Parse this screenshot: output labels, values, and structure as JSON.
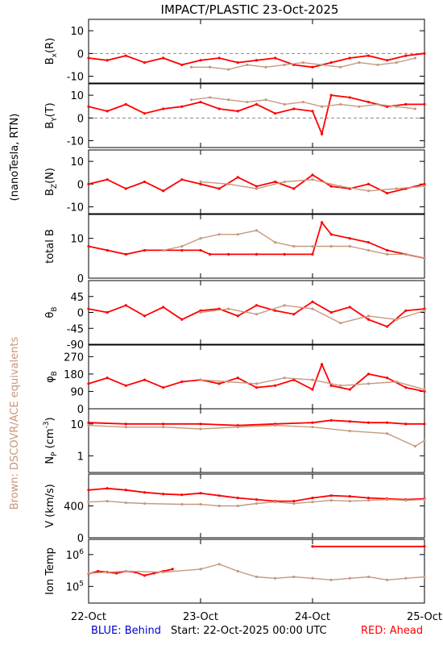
{
  "header": {
    "title": "IMPACT/PLASTIC   23-Oct-2025"
  },
  "side_labels": {
    "units": "(nanoTesla, RTN)",
    "brown_note": "Brown: DSCOVR/ACE equivalents"
  },
  "footer": {
    "blue": "BLUE: Behind",
    "start": "Start: 22-Oct-2025 00:00 UTC",
    "red": "RED: Ahead"
  },
  "colors": {
    "ahead": "#ff0000",
    "dscovr": "#c49a80",
    "behind": "#0000cc",
    "axis": "#000000",
    "zero_line": "#888888",
    "brown_note": "#c8957a"
  },
  "chart_data": {
    "type": "line",
    "xaxis": {
      "ticks": [
        0,
        24,
        48,
        72
      ],
      "tick_labels": [
        "22-Oct",
        "23-Oct",
        "24-Oct",
        "25-Oct"
      ],
      "unit": "hours since 22-Oct-2025 00:00 UTC",
      "range": [
        0,
        72
      ]
    },
    "panels": [
      {
        "label": "Bx(R)",
        "base": "B",
        "sub": "x",
        "tail": "(R)",
        "scale": "linear",
        "ylim": [
          -13,
          15
        ],
        "ticks": [
          -10,
          0,
          10
        ],
        "tick_labels": [
          "-10",
          "0",
          "10"
        ],
        "zero_line": true,
        "series": [
          {
            "name": "ahead",
            "x": [
              0,
              4,
              8,
              12,
              16,
              20,
              24,
              28,
              32,
              36,
              40,
              44,
              48,
              52,
              56,
              60,
              64,
              68,
              72
            ],
            "y": [
              -2,
              -3,
              -1,
              -4,
              -2,
              -5,
              -3,
              -2,
              -4,
              -3,
              -2,
              -5,
              -6,
              -4,
              -2,
              -1,
              -3,
              -1,
              0
            ]
          },
          {
            "name": "dscovr",
            "x": [
              22,
              26,
              30,
              34,
              38,
              42,
              46,
              50,
              54,
              58,
              62,
              66,
              70
            ],
            "y": [
              -6,
              -6,
              -7,
              -5,
              -6,
              -5,
              -4,
              -5,
              -6,
              -4,
              -5,
              -4,
              -2
            ]
          }
        ]
      },
      {
        "label": "By(T)",
        "base": "B",
        "sub": "Y",
        "tail": "(T)",
        "scale": "linear",
        "ylim": [
          -13,
          15
        ],
        "ticks": [
          -10,
          0,
          10
        ],
        "tick_labels": [
          "-10",
          "0",
          "10"
        ],
        "zero_line": true,
        "series": [
          {
            "name": "ahead",
            "x": [
              0,
              4,
              8,
              12,
              16,
              20,
              24,
              28,
              32,
              36,
              40,
              44,
              48,
              50,
              52,
              56,
              60,
              64,
              68,
              72
            ],
            "y": [
              5,
              3,
              6,
              2,
              4,
              5,
              7,
              4,
              3,
              6,
              2,
              4,
              3,
              -7,
              10,
              9,
              7,
              5,
              6,
              6
            ]
          },
          {
            "name": "dscovr",
            "x": [
              22,
              26,
              30,
              34,
              38,
              42,
              46,
              50,
              54,
              58,
              62,
              66,
              70
            ],
            "y": [
              8,
              9,
              8,
              7,
              8,
              6,
              7,
              5,
              6,
              5,
              6,
              5,
              4
            ]
          }
        ]
      },
      {
        "label": "Bz(N)",
        "base": "B",
        "sub": "Z",
        "tail": "(N)",
        "scale": "linear",
        "ylim": [
          -13,
          15
        ],
        "ticks": [
          -10,
          0,
          10
        ],
        "tick_labels": [
          "-10",
          "0",
          "10"
        ],
        "zero_line": false,
        "series": [
          {
            "name": "ahead",
            "x": [
              0,
              4,
              8,
              12,
              16,
              20,
              24,
              28,
              32,
              36,
              40,
              44,
              48,
              52,
              56,
              60,
              64,
              68,
              72
            ],
            "y": [
              0,
              2,
              -2,
              1,
              -3,
              2,
              0,
              -2,
              3,
              -1,
              1,
              -2,
              4,
              -1,
              -2,
              0,
              -4,
              -2,
              0
            ]
          },
          {
            "name": "dscovr",
            "x": [
              24,
              30,
              36,
              42,
              48,
              54,
              60,
              66,
              72
            ],
            "y": [
              1,
              0,
              -2,
              1,
              2,
              -1,
              -3,
              -2,
              -1
            ]
          }
        ]
      },
      {
        "label": "total B",
        "base": "total B",
        "sub": "",
        "tail": "",
        "scale": "linear",
        "ylim": [
          0,
          16
        ],
        "ticks": [
          0,
          10
        ],
        "tick_labels": [
          "0",
          "10"
        ],
        "zero_line": false,
        "series": [
          {
            "name": "ahead",
            "x": [
              0,
              4,
              8,
              12,
              16,
              20,
              24,
              26,
              30,
              36,
              42,
              48,
              50,
              52,
              56,
              60,
              64,
              68,
              72
            ],
            "y": [
              8,
              7,
              6,
              7,
              7,
              7,
              7,
              6,
              6,
              6,
              6,
              6,
              14,
              11,
              10,
              9,
              7,
              6,
              5
            ]
          },
          {
            "name": "dscovr",
            "x": [
              16,
              20,
              24,
              28,
              32,
              36,
              40,
              44,
              48,
              52,
              56,
              60,
              64,
              68,
              72
            ],
            "y": [
              7,
              8,
              10,
              11,
              11,
              12,
              9,
              8,
              8,
              8,
              8,
              7,
              6,
              6,
              5
            ]
          }
        ]
      },
      {
        "label": "θB",
        "base": "θ",
        "sub": "B",
        "tail": "",
        "scale": "linear",
        "ylim": [
          -90,
          90
        ],
        "ticks": [
          -90,
          -45,
          0,
          45
        ],
        "tick_labels": [
          "-90",
          "-45",
          "0",
          "45"
        ],
        "zero_line": false,
        "series": [
          {
            "name": "ahead",
            "x": [
              0,
              4,
              8,
              12,
              16,
              20,
              24,
              28,
              32,
              36,
              40,
              44,
              48,
              52,
              56,
              60,
              64,
              68,
              72
            ],
            "y": [
              10,
              0,
              20,
              -10,
              15,
              -20,
              5,
              10,
              -10,
              20,
              5,
              -5,
              30,
              0,
              15,
              -20,
              -40,
              5,
              10
            ]
          },
          {
            "name": "dscovr",
            "x": [
              24,
              30,
              36,
              42,
              48,
              54,
              60,
              66,
              72
            ],
            "y": [
              0,
              10,
              -5,
              20,
              10,
              -30,
              -10,
              -20,
              5
            ]
          }
        ]
      },
      {
        "label": "φB",
        "base": "φ",
        "sub": "B",
        "tail": "",
        "scale": "linear",
        "ylim": [
          0,
          330
        ],
        "ticks": [
          0,
          90,
          180,
          270
        ],
        "tick_labels": [
          "0",
          "90",
          "180",
          "270"
        ],
        "zero_line": false,
        "series": [
          {
            "name": "ahead",
            "x": [
              0,
              4,
              8,
              12,
              16,
              20,
              24,
              28,
              32,
              36,
              40,
              44,
              48,
              50,
              52,
              56,
              60,
              64,
              68,
              72
            ],
            "y": [
              130,
              160,
              120,
              150,
              110,
              140,
              150,
              130,
              160,
              110,
              120,
              150,
              100,
              230,
              120,
              100,
              180,
              160,
              110,
              90
            ]
          },
          {
            "name": "dscovr",
            "x": [
              24,
              30,
              36,
              42,
              48,
              54,
              60,
              66,
              72
            ],
            "y": [
              150,
              140,
              130,
              160,
              150,
              120,
              130,
              140,
              100
            ]
          }
        ]
      },
      {
        "label": "Np (cm^-3)",
        "base": "N",
        "sub": "P",
        "tail": " (cm",
        "scale": "log",
        "ylim": [
          0.3,
          30
        ],
        "ticks": [
          1,
          10
        ],
        "tick_labels": [
          "1",
          "10"
        ],
        "zero_line": false,
        "series": [
          {
            "name": "ahead",
            "x": [
              0,
              8,
              16,
              24,
              32,
              40,
              48,
              52,
              56,
              60,
              64,
              68,
              72
            ],
            "y": [
              11,
              10,
              10,
              10,
              9,
              10,
              11,
              13,
              12,
              11,
              11,
              10,
              10
            ]
          },
          {
            "name": "dscovr",
            "x": [
              0,
              8,
              16,
              24,
              32,
              40,
              48,
              56,
              64,
              70,
              72
            ],
            "y": [
              9,
              8,
              8,
              7,
              8,
              9,
              8,
              6,
              5,
              2,
              3
            ]
          }
        ]
      },
      {
        "label": "V (km/s)",
        "base": "V (km/s)",
        "sub": "",
        "tail": "",
        "scale": "linear",
        "ylim": [
          0,
          800
        ],
        "ticks": [
          0,
          400
        ],
        "tick_labels": [
          "0",
          "400"
        ],
        "zero_line": false,
        "series": [
          {
            "name": "ahead",
            "x": [
              0,
              4,
              8,
              12,
              16,
              20,
              24,
              28,
              32,
              36,
              40,
              44,
              48,
              52,
              56,
              60,
              64,
              68,
              72
            ],
            "y": [
              600,
              620,
              600,
              570,
              550,
              540,
              560,
              530,
              500,
              480,
              460,
              460,
              500,
              530,
              520,
              500,
              490,
              480,
              490
            ]
          },
          {
            "name": "dscovr",
            "x": [
              0,
              4,
              8,
              12,
              20,
              24,
              28,
              32,
              36,
              40,
              44,
              48,
              52,
              56,
              60,
              64,
              68,
              72
            ],
            "y": [
              450,
              460,
              440,
              430,
              420,
              420,
              400,
              400,
              430,
              450,
              430,
              450,
              470,
              460,
              470,
              480,
              470,
              480
            ]
          }
        ]
      },
      {
        "label": "Ion Temp",
        "base": "Ion Temp",
        "sub": "",
        "tail": "",
        "scale": "log",
        "ylim": [
          30000,
          3000000
        ],
        "ticks": [
          100000,
          1000000
        ],
        "tick_labels": [
          "10",
          "10"
        ],
        "tick_exponents": [
          "5",
          "6"
        ],
        "zero_line": false,
        "series": [
          {
            "name": "ahead",
            "x": [
              0,
              2,
              4,
              6,
              8,
              10,
              12,
              14,
              16,
              18
            ],
            "y": [
              250000,
              300000,
              280000,
              260000,
              300000,
              280000,
              220000,
              260000,
              300000,
              350000
            ]
          },
          {
            "name": "ahead",
            "x": [
              48,
              72
            ],
            "y": [
              1800000,
              1800000
            ]
          },
          {
            "name": "dscovr",
            "x": [
              0,
              8,
              16,
              24,
              28,
              32,
              36,
              40,
              44,
              48,
              52,
              56,
              60,
              64,
              68,
              72
            ],
            "y": [
              260000,
              300000,
              280000,
              350000,
              500000,
              300000,
              200000,
              180000,
              200000,
              180000,
              160000,
              180000,
              200000,
              160000,
              180000,
              200000
            ]
          }
        ]
      }
    ]
  }
}
